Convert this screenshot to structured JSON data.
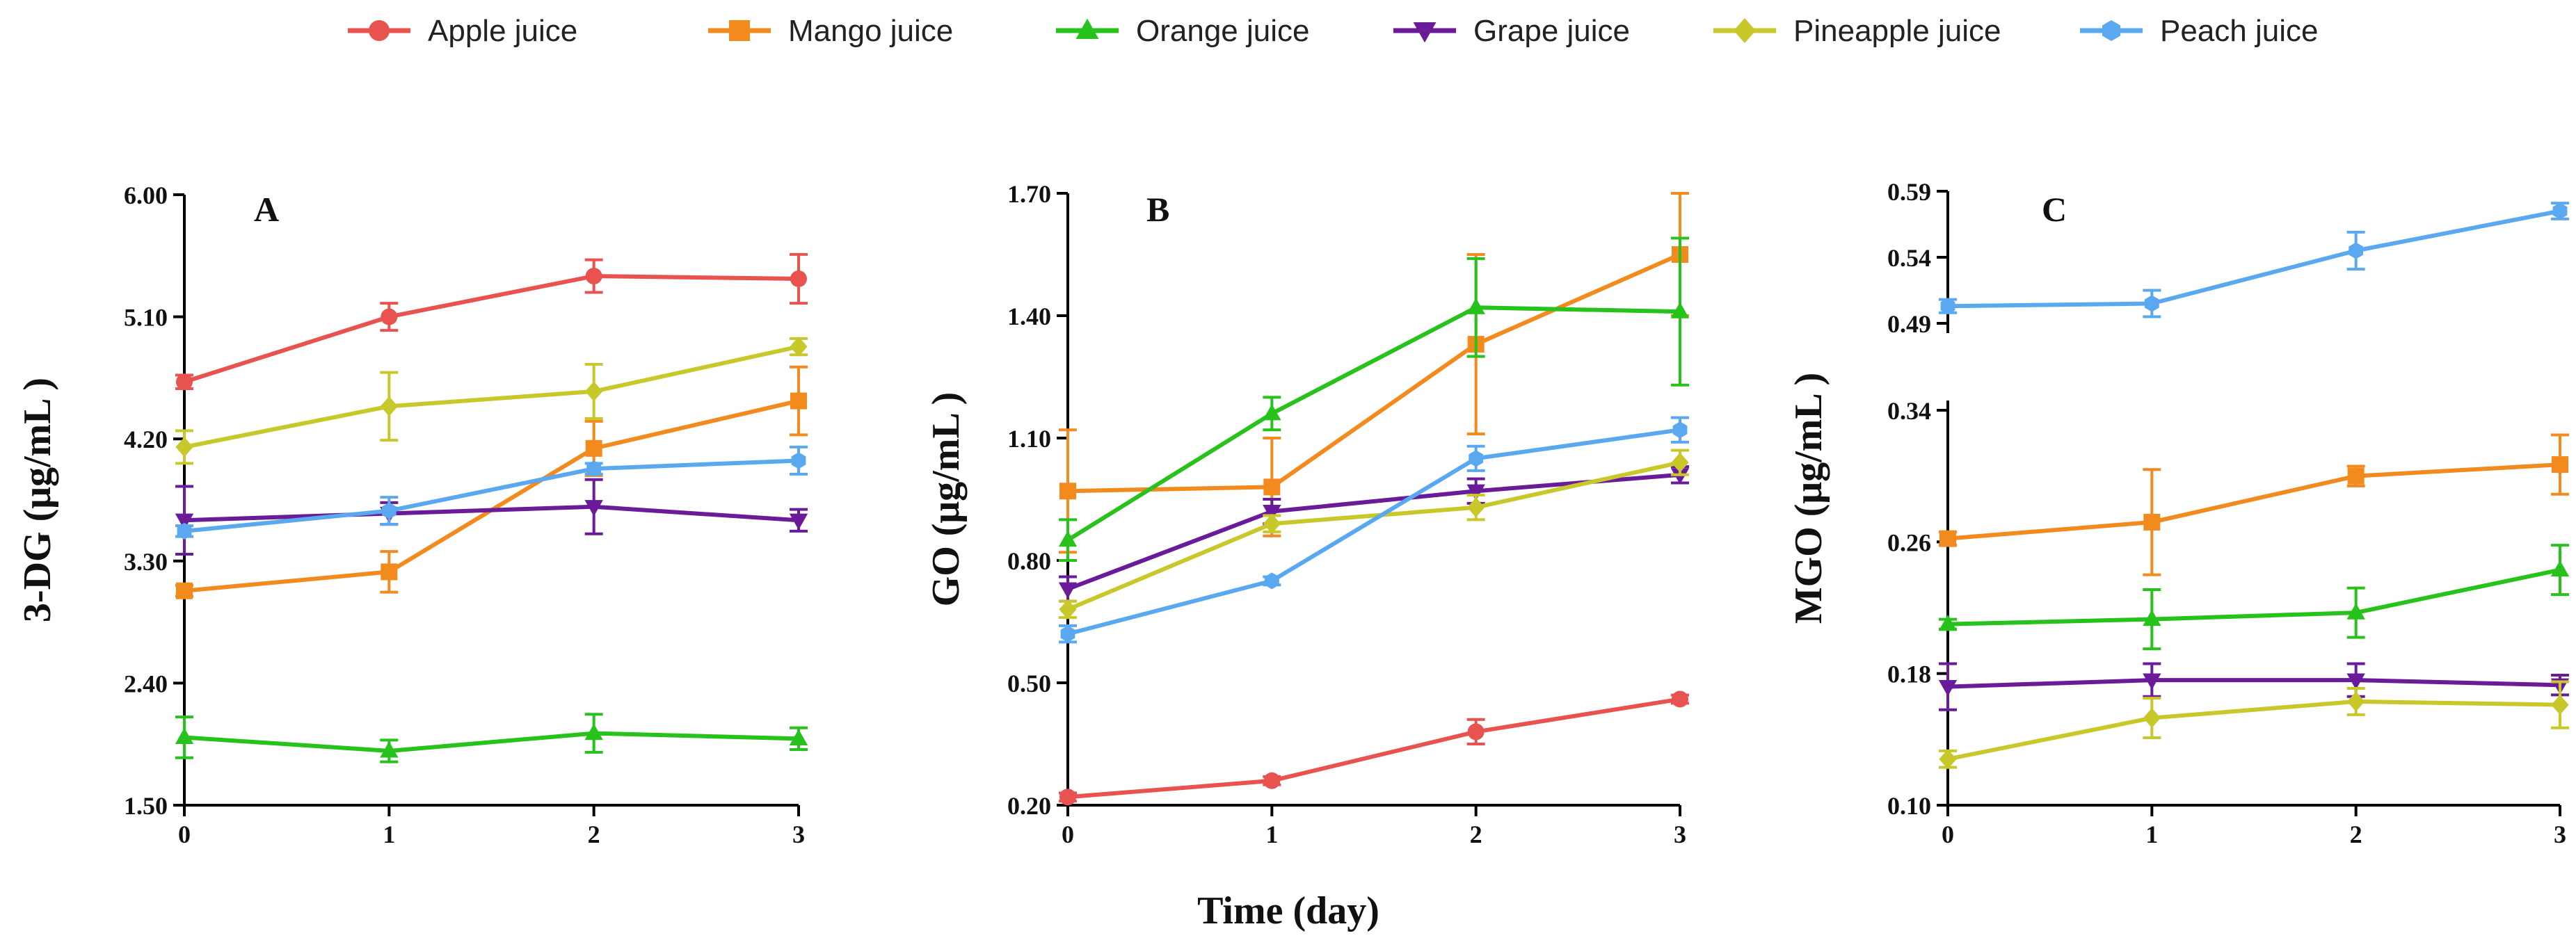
{
  "legend": [
    {
      "name": "Apple juice",
      "color": "#e8524f",
      "marker": "circle"
    },
    {
      "name": "Mango juice",
      "color": "#f28a1e",
      "marker": "square"
    },
    {
      "name": "Orange juice",
      "color": "#27c21b",
      "marker": "triangle-up"
    },
    {
      "name": "Grape juice",
      "color": "#6a1b9a",
      "marker": "triangle-down"
    },
    {
      "name": "Pineapple juice",
      "color": "#c8c82a",
      "marker": "diamond"
    },
    {
      "name": "Peach juice",
      "color": "#5aa8f0",
      "marker": "hexagon"
    }
  ],
  "xlabel": "Time (day)",
  "chart_data": [
    {
      "type": "line",
      "panel_label": "A",
      "ylabel": "3-DG (μg/mL )",
      "x": [
        0,
        1,
        2,
        3
      ],
      "x_tick_labels": [
        "0",
        "1",
        "2",
        "3"
      ],
      "ylim": [
        1.5,
        6.0
      ],
      "y_tick_labels": [
        "1.50",
        "2.40",
        "3.30",
        "4.20",
        "5.10",
        "6.00"
      ],
      "series": [
        {
          "name": "Apple juice",
          "values": [
            4.62,
            5.1,
            5.4,
            5.38
          ],
          "err": [
            0.05,
            0.1,
            0.12,
            0.18
          ]
        },
        {
          "name": "Mango juice",
          "values": [
            3.08,
            3.22,
            4.13,
            4.48
          ],
          "err": [
            0.04,
            0.15,
            0.2,
            0.25
          ]
        },
        {
          "name": "Orange juice",
          "values": [
            2.0,
            1.9,
            2.03,
            1.99
          ],
          "err": [
            0.15,
            0.08,
            0.14,
            0.08
          ]
        },
        {
          "name": "Grape juice",
          "values": [
            3.6,
            3.65,
            3.7,
            3.6
          ],
          "err": [
            0.25,
            0.08,
            0.2,
            0.08
          ]
        },
        {
          "name": "Pineapple juice",
          "values": [
            4.14,
            4.44,
            4.55,
            4.88
          ],
          "err": [
            0.12,
            0.25,
            0.2,
            0.06
          ]
        },
        {
          "name": "Peach juice",
          "values": [
            3.52,
            3.67,
            3.98,
            4.04
          ],
          "err": [
            0.04,
            0.1,
            0.04,
            0.1
          ]
        }
      ]
    },
    {
      "type": "line",
      "panel_label": "B",
      "ylabel": "GO (μg/mL )",
      "x": [
        0,
        1,
        2,
        3
      ],
      "x_tick_labels": [
        "0",
        "1",
        "2",
        "3"
      ],
      "ylim": [
        0.2,
        1.7
      ],
      "y_tick_labels": [
        "0.20",
        "0.50",
        "0.80",
        "1.10",
        "1.40",
        "1.70"
      ],
      "series": [
        {
          "name": "Apple juice",
          "values": [
            0.22,
            0.26,
            0.38,
            0.46
          ],
          "err": [
            0.01,
            0.01,
            0.03,
            0.01
          ]
        },
        {
          "name": "Mango juice",
          "values": [
            0.97,
            0.98,
            1.33,
            1.55
          ],
          "err": [
            0.15,
            0.12,
            0.22,
            0.15
          ]
        },
        {
          "name": "Orange juice",
          "values": [
            0.85,
            1.16,
            1.42,
            1.41
          ],
          "err": [
            0.05,
            0.04,
            0.12,
            0.18
          ]
        },
        {
          "name": "Grape juice",
          "values": [
            0.73,
            0.92,
            0.97,
            1.01
          ],
          "err": [
            0.03,
            0.03,
            0.03,
            0.02
          ]
        },
        {
          "name": "Pineapple juice",
          "values": [
            0.68,
            0.89,
            0.93,
            1.04
          ],
          "err": [
            0.02,
            0.02,
            0.03,
            0.03
          ]
        },
        {
          "name": "Peach juice",
          "values": [
            0.62,
            0.75,
            1.05,
            1.12
          ],
          "err": [
            0.02,
            0.01,
            0.03,
            0.03
          ]
        }
      ]
    },
    {
      "type": "line",
      "panel_label": "C",
      "ylabel": "MGO (μg/mL )",
      "x": [
        0,
        1,
        2,
        3
      ],
      "x_tick_labels": [
        "0",
        "1",
        "2",
        "3"
      ],
      "broken_axis": true,
      "ylim_lower": [
        0.1,
        0.34
      ],
      "ylim_upper": [
        0.49,
        0.59
      ],
      "y_tick_labels": [
        "0.10",
        "0.18",
        "0.26",
        "0.34",
        "0.49",
        "0.54",
        "0.59"
      ],
      "series": [
        {
          "name": "Mango juice",
          "values": [
            0.262,
            0.272,
            0.3,
            0.307
          ],
          "err": [
            0.004,
            0.032,
            0.006,
            0.018
          ]
        },
        {
          "name": "Orange juice",
          "values": [
            0.21,
            0.213,
            0.217,
            0.243
          ],
          "err": [
            0.003,
            0.018,
            0.015,
            0.015
          ]
        },
        {
          "name": "Grape juice",
          "values": [
            0.172,
            0.176,
            0.176,
            0.173
          ],
          "err": [
            0.014,
            0.01,
            0.01,
            0.006
          ]
        },
        {
          "name": "Pineapple juice",
          "values": [
            0.128,
            0.153,
            0.163,
            0.161
          ],
          "err": [
            0.005,
            0.012,
            0.008,
            0.014
          ]
        },
        {
          "name": "Peach juice",
          "values": [
            0.503,
            0.505,
            0.545,
            0.575
          ],
          "err": [
            0.005,
            0.01,
            0.014,
            0.006
          ]
        }
      ]
    }
  ]
}
